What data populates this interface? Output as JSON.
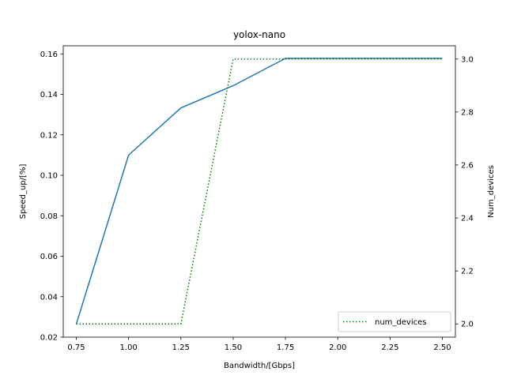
{
  "chart_data": {
    "type": "line",
    "title": "yolox-nano",
    "xlabel": "Bandwidth/[Gbps]",
    "ylabel": "Speed_up/[%]",
    "y2label": "Num_devices",
    "xlim": [
      0.6875,
      2.5625
    ],
    "ylim": [
      0.02,
      0.164
    ],
    "y2lim": [
      1.95,
      3.05
    ],
    "x_ticks": [
      "0.75",
      "1.00",
      "1.25",
      "1.50",
      "1.75",
      "2.00",
      "2.25",
      "2.50"
    ],
    "y_ticks": [
      "0.02",
      "0.04",
      "0.06",
      "0.08",
      "0.10",
      "0.12",
      "0.14",
      "0.16"
    ],
    "y2_ticks": [
      "2.0",
      "2.2",
      "2.4",
      "2.6",
      "2.8",
      "3.0"
    ],
    "grid": false,
    "legend_position": "lower-right",
    "series": [
      {
        "axis": "left",
        "color": "#1f77b4",
        "style": "solid",
        "x": [
          0.75,
          1.0,
          1.25,
          1.5,
          1.75,
          2.0,
          2.25,
          2.5
        ],
        "values": [
          0.0265,
          0.11,
          0.1333,
          0.1443,
          0.1578,
          0.1578,
          0.1578,
          0.1578
        ]
      },
      {
        "name": "num_devices",
        "axis": "right",
        "color": "#008000",
        "style": "dotted",
        "x": [
          0.75,
          1.0,
          1.25,
          1.5,
          1.75,
          2.0,
          2.25,
          2.5
        ],
        "values": [
          2,
          2,
          2,
          3,
          3,
          3,
          3,
          3
        ]
      }
    ]
  }
}
